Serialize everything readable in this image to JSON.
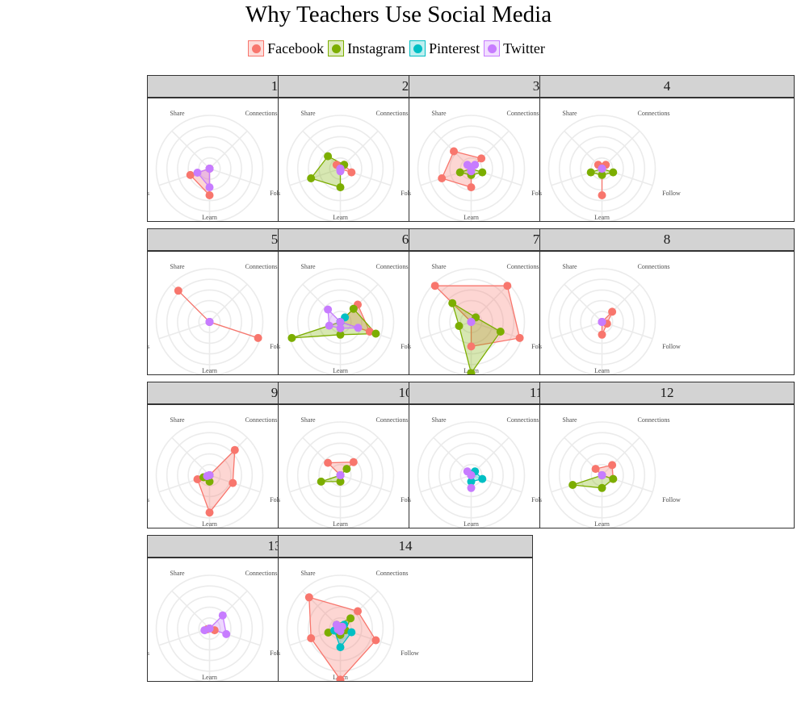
{
  "chart_data": {
    "type": "radar",
    "title": "Why Teachers Use Social Media",
    "axes": [
      "Connections",
      "Follow",
      "Learn",
      "Resources",
      "Share"
    ],
    "rlim": [
      0,
      1
    ],
    "grid": true,
    "legend_position": "top",
    "series_colors": {
      "Facebook": "#F8766D",
      "Instagram": "#7CAE00",
      "Pinterest": "#00BFC4",
      "Twitter": "#C77CFF"
    },
    "legend": [
      "Facebook",
      "Instagram",
      "Pinterest",
      "Twitter"
    ],
    "panels": [
      {
        "label": "1",
        "series": [
          {
            "name": "Facebook",
            "values": [
              0,
              0,
              0.5,
              0.38,
              0
            ]
          },
          {
            "name": "Twitter",
            "values": [
              0,
              0,
              0.35,
              0.24,
              0
            ]
          }
        ]
      },
      {
        "label": "2",
        "series": [
          {
            "name": "Facebook",
            "values": [
              0.1,
              0.22,
              0,
              0,
              0.1
            ]
          },
          {
            "name": "Instagram",
            "values": [
              0.1,
              0,
              0.35,
              0.58,
              0.33
            ]
          },
          {
            "name": "Twitter",
            "values": [
              0,
              0,
              0.05,
              0,
              0
            ]
          }
        ]
      },
      {
        "label": "3",
        "series": [
          {
            "name": "Facebook",
            "values": [
              0.27,
              0,
              0.35,
              0.58,
              0.46
            ]
          },
          {
            "name": "Instagram",
            "values": [
              0,
              0.22,
              0.12,
              0.22,
              0
            ]
          },
          {
            "name": "Twitter",
            "values": [
              0.1,
              0,
              0.05,
              0,
              0.1
            ]
          }
        ]
      },
      {
        "label": "4",
        "series": [
          {
            "name": "Facebook",
            "values": [
              0.1,
              0,
              0.5,
              0,
              0.1
            ]
          },
          {
            "name": "Instagram",
            "values": [
              0,
              0.22,
              0.12,
              0.22,
              0
            ]
          },
          {
            "name": "Twitter",
            "values": [
              0,
              0,
              0,
              0,
              0
            ]
          }
        ]
      },
      {
        "label": "5",
        "series": [
          {
            "name": "Facebook",
            "values": [
              0,
              0.96,
              0,
              0,
              0.83
            ]
          },
          {
            "name": "Twitter",
            "values": [
              0,
              0,
              0,
              0,
              0
            ]
          }
        ]
      },
      {
        "label": "6",
        "series": [
          {
            "name": "Facebook",
            "values": [
              0.46,
              0.58,
              0,
              0,
              0
            ]
          },
          {
            "name": "Instagram",
            "values": [
              0.35,
              0.7,
              0.24,
              0.96,
              0
            ]
          },
          {
            "name": "Pinterest",
            "values": [
              0.12,
              0,
              0,
              0,
              0
            ]
          },
          {
            "name": "Twitter",
            "values": [
              0,
              0.35,
              0.12,
              0.22,
              0.33
            ]
          }
        ]
      },
      {
        "label": "7",
        "series": [
          {
            "name": "Facebook",
            "values": [
              0.96,
              0.96,
              0.46,
              0,
              0.96
            ]
          },
          {
            "name": "Instagram",
            "values": [
              0.12,
              0.58,
              0.96,
              0.24,
              0.5
            ]
          },
          {
            "name": "Twitter",
            "values": [
              0,
              0,
              0,
              0,
              0
            ]
          }
        ]
      },
      {
        "label": "8",
        "series": [
          {
            "name": "Facebook",
            "values": [
              0.27,
              0.1,
              0.24,
              0,
              0
            ]
          },
          {
            "name": "Twitter",
            "values": [
              0,
              0,
              0,
              0,
              0
            ]
          }
        ]
      },
      {
        "label": "9",
        "series": [
          {
            "name": "Facebook",
            "values": [
              0.67,
              0.46,
              0.7,
              0.24,
              0
            ]
          },
          {
            "name": "Instagram",
            "values": [
              0,
              0,
              0.12,
              0.12,
              0
            ]
          },
          {
            "name": "Twitter",
            "values": [
              0,
              0,
              0,
              0.05,
              0
            ]
          }
        ]
      },
      {
        "label": "10",
        "series": [
          {
            "name": "Facebook",
            "values": [
              0.35,
              0,
              0.12,
              0,
              0.33
            ]
          },
          {
            "name": "Instagram",
            "values": [
              0.17,
              0,
              0.12,
              0.38,
              0
            ]
          },
          {
            "name": "Twitter",
            "values": [
              0,
              0,
              0,
              0,
              0
            ]
          }
        ]
      },
      {
        "label": "11",
        "series": [
          {
            "name": "Pinterest",
            "values": [
              0.1,
              0.22,
              0.12,
              0,
              0
            ]
          },
          {
            "name": "Twitter",
            "values": [
              0,
              0,
              0.24,
              0,
              0.1
            ]
          }
        ]
      },
      {
        "label": "12",
        "series": [
          {
            "name": "Facebook",
            "values": [
              0.27,
              0.22,
              0,
              0,
              0.17
            ]
          },
          {
            "name": "Instagram",
            "values": [
              0,
              0.22,
              0.24,
              0.58,
              0
            ]
          },
          {
            "name": "Twitter",
            "values": [
              0,
              0,
              0,
              0,
              0
            ]
          }
        ]
      },
      {
        "label": "13",
        "series": [
          {
            "name": "Facebook",
            "values": [
              0,
              0.1,
              0,
              0.05,
              0
            ]
          },
          {
            "name": "Twitter",
            "values": [
              0.35,
              0.33,
              0,
              0.1,
              0
            ]
          }
        ]
      },
      {
        "label": "14",
        "series": [
          {
            "name": "Facebook",
            "values": [
              0.46,
              0.7,
              0.96,
              0.58,
              0.83
            ]
          },
          {
            "name": "Instagram",
            "values": [
              0.27,
              0.1,
              0.12,
              0.24,
              0.1
            ]
          },
          {
            "name": "Pinterest",
            "values": [
              0.1,
              0.22,
              0.35,
              0.12,
              0.05
            ]
          },
          {
            "name": "Twitter",
            "values": [
              0.05,
              0,
              0.05,
              0.05,
              0.1
            ]
          }
        ]
      }
    ]
  }
}
